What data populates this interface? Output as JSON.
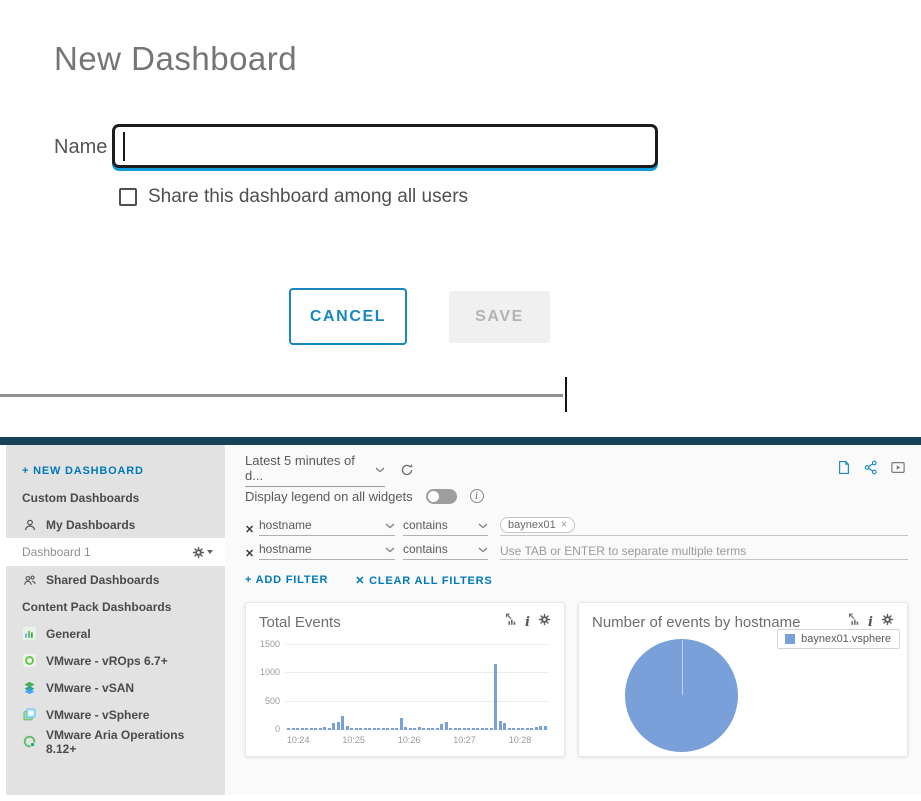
{
  "colors": {
    "accent_blue": "#0079b8",
    "button_blue": "#1787c1",
    "focus_blue": "#0e9cd8",
    "topbar_teal": "#16425a",
    "chart_blue": "#7aa0d9",
    "sidebar_gray": "#e2e2e2"
  },
  "icons": {
    "dropdown-chevron-icon": "chevron-down",
    "refresh-icon": "circular-arrow",
    "document-icon": "page-with-folded-corner",
    "share-icon": "share-nodes",
    "presentation-icon": "play-in-box",
    "remove-filter-icon": "✕",
    "tag-close-icon": "×",
    "open-in-analytics-icon": "bar-chart-with-arrow",
    "info-icon": "italic-i",
    "gear-icon": "gear",
    "user-icon": "person",
    "users-icon": "people-group",
    "legend-info-icon": "circled-i"
  },
  "dialog": {
    "title": "New Dashboard",
    "name_label": "Name",
    "name_value": "",
    "share_checkbox_label": "Share this dashboard among all users",
    "share_checked": false,
    "cancel_label": "CANCEL",
    "save_label": "SAVE",
    "save_enabled": false
  },
  "app": {
    "sidebar": {
      "new_dashboard_link": "+ NEW DASHBOARD",
      "items": [
        {
          "label": "Custom Dashboards",
          "kind": "header",
          "icon": null
        },
        {
          "label": "My Dashboards",
          "kind": "group",
          "icon": "user-icon"
        },
        {
          "label": "Dashboard 1",
          "kind": "selected",
          "icon": null,
          "trailing_icon": "gear-menu-icon"
        },
        {
          "label": "Shared Dashboards",
          "kind": "group",
          "icon": "users-icon"
        },
        {
          "label": "Content Pack Dashboards",
          "kind": "header",
          "icon": null
        },
        {
          "label": "General",
          "kind": "pack",
          "icon": "general-pack-icon"
        },
        {
          "label": "VMware - vROps 6.7+",
          "kind": "pack",
          "icon": "vrops-pack-icon"
        },
        {
          "label": "VMware - vSAN",
          "kind": "pack",
          "icon": "vsan-pack-icon"
        },
        {
          "label": "VMware - vSphere",
          "kind": "pack",
          "icon": "vsphere-pack-icon"
        },
        {
          "label": "VMware Aria Operations 8.12+",
          "kind": "pack",
          "icon": "aria-pack-icon"
        }
      ]
    },
    "toolbar": {
      "time_range_value": "Latest 5 minutes of d...",
      "legend_toggle_label": "Display legend on all widgets",
      "legend_toggle_on": false,
      "right_icons": [
        "document-icon",
        "share-icon",
        "presentation-icon"
      ]
    },
    "filters": {
      "rows": [
        {
          "field": "hostname",
          "operator": "contains",
          "value_tag": "baynex01",
          "placeholder": ""
        },
        {
          "field": "hostname",
          "operator": "contains",
          "value_tag": "",
          "placeholder": "Use TAB or ENTER to separate multiple terms"
        }
      ],
      "add_filter_label": "+ ADD FILTER",
      "clear_all_label": "✕ CLEAR ALL FILTERS"
    }
  },
  "chart_data": [
    {
      "type": "bar",
      "title": "Total Events",
      "xlabel": "",
      "ylabel": "",
      "ylim": [
        0,
        1500
      ],
      "y_ticks": [
        0,
        500,
        1000,
        1500
      ],
      "x_tick_labels": [
        "10:24",
        "10:25",
        "10:26",
        "10:27",
        "10:28"
      ],
      "x_tick_positions_pct": [
        5,
        26,
        47,
        68,
        89
      ],
      "grid": true,
      "bar_color": "#7aa0d9",
      "values": [
        15,
        12,
        14,
        13,
        15,
        12,
        14,
        40,
        60,
        30,
        120,
        140,
        250,
        70,
        18,
        15,
        14,
        13,
        35,
        15,
        40,
        15,
        14,
        13,
        15,
        210,
        45,
        25,
        15,
        50,
        20,
        15,
        14,
        20,
        100,
        150,
        30,
        15,
        14,
        13,
        15,
        14,
        13,
        15,
        14,
        20,
        1170,
        160,
        130,
        25,
        20,
        15,
        14,
        13,
        25,
        60,
        70,
        70
      ]
    },
    {
      "type": "pie",
      "title": "Number of events by hostname",
      "labels": [
        "baynex01.vsphere"
      ],
      "values": [
        100
      ],
      "color": "#7aa0d9",
      "legend_position": "top-right"
    }
  ]
}
